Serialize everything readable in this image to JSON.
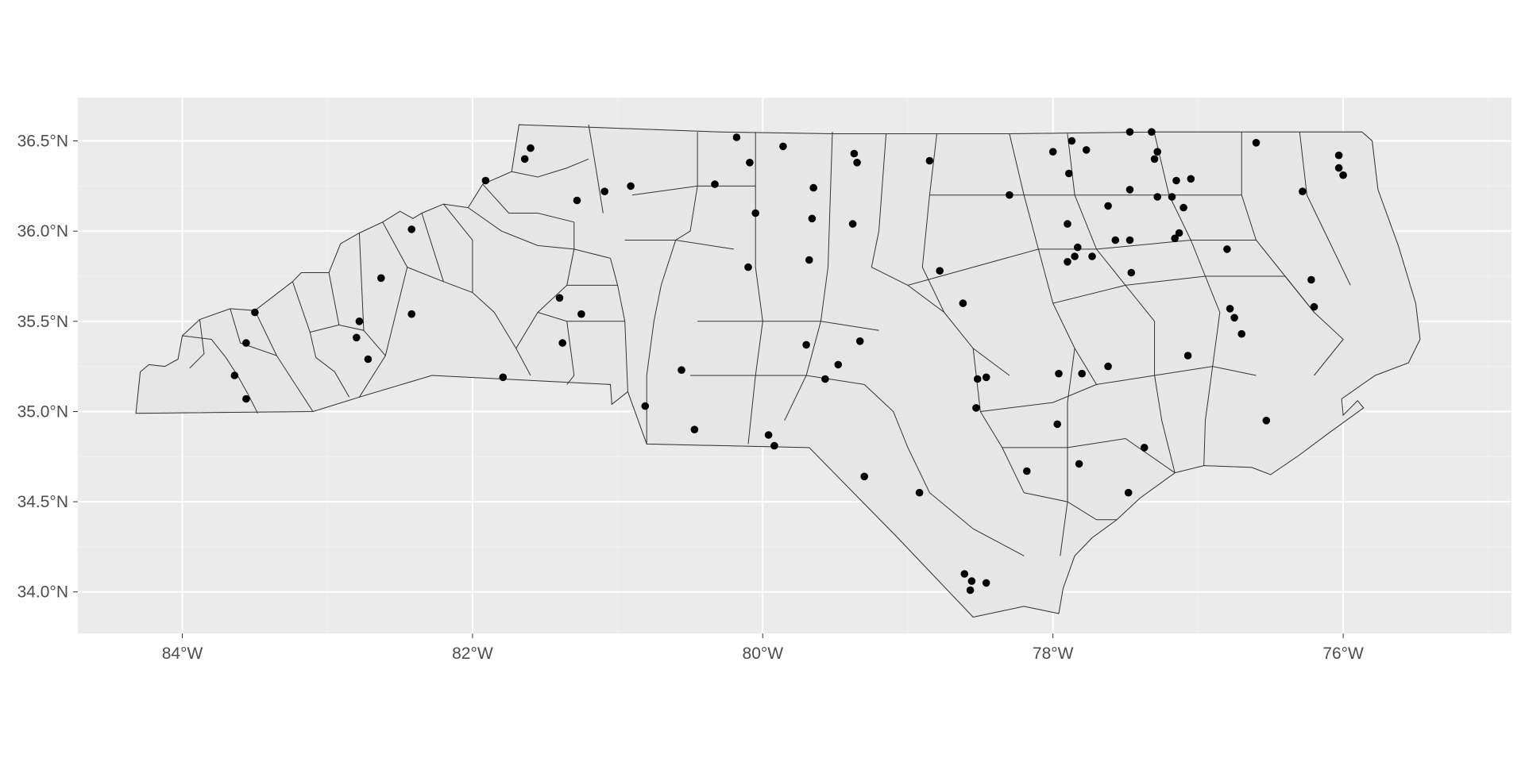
{
  "map": {
    "kind": "sf-plot",
    "region": "North Carolina counties",
    "panel_background": "#ebebeb",
    "fill_color": "#e6e6e6",
    "border_color": "#333333",
    "point_color": "#000000",
    "grid": true
  },
  "axes": {
    "x": {
      "range": [
        -84.72,
        -74.84
      ],
      "ticks": [
        {
          "value": -84,
          "label": "84°W"
        },
        {
          "value": -82,
          "label": "82°W"
        },
        {
          "value": -80,
          "label": "80°W"
        },
        {
          "value": -78,
          "label": "78°W"
        },
        {
          "value": -76,
          "label": "76°W"
        }
      ]
    },
    "y": {
      "range": [
        33.77,
        36.74
      ],
      "ticks": [
        {
          "value": 34.0,
          "label": "34.0°N"
        },
        {
          "value": 34.5,
          "label": "34.5°N"
        },
        {
          "value": 35.0,
          "label": "35.0°N"
        },
        {
          "value": 35.5,
          "label": "35.5°N"
        },
        {
          "value": 36.0,
          "label": "36.0°N"
        },
        {
          "value": 36.5,
          "label": "36.5°N"
        }
      ]
    }
  },
  "state_outline": [
    [
      -84.32,
      34.99
    ],
    [
      -84.29,
      35.22
    ],
    [
      -84.23,
      35.26
    ],
    [
      -84.12,
      35.25
    ],
    [
      -84.03,
      35.29
    ],
    [
      -84.0,
      35.42
    ],
    [
      -83.88,
      35.51
    ],
    [
      -83.67,
      35.57
    ],
    [
      -83.5,
      35.56
    ],
    [
      -83.24,
      35.72
    ],
    [
      -83.18,
      35.77
    ],
    [
      -82.99,
      35.77
    ],
    [
      -82.91,
      35.93
    ],
    [
      -82.78,
      35.99
    ],
    [
      -82.62,
      36.05
    ],
    [
      -82.5,
      36.11
    ],
    [
      -82.41,
      36.07
    ],
    [
      -82.35,
      36.1
    ],
    [
      -82.2,
      36.15
    ],
    [
      -82.03,
      36.13
    ],
    [
      -81.93,
      36.26
    ],
    [
      -81.73,
      36.33
    ],
    [
      -81.68,
      36.59
    ],
    [
      -80.3,
      36.55
    ],
    [
      -79.51,
      36.54
    ],
    [
      -78.3,
      36.54
    ],
    [
      -77.27,
      36.55
    ],
    [
      -76.92,
      36.55
    ],
    [
      -75.87,
      36.55
    ],
    [
      -75.8,
      36.5
    ],
    [
      -75.76,
      36.23
    ],
    [
      -75.62,
      35.92
    ],
    [
      -75.5,
      35.6
    ],
    [
      -75.47,
      35.4
    ],
    [
      -75.55,
      35.27
    ],
    [
      -75.78,
      35.2
    ],
    [
      -76.01,
      35.07
    ],
    [
      -76.0,
      34.98
    ],
    [
      -75.9,
      35.06
    ],
    [
      -75.86,
      35.02
    ],
    [
      -76.1,
      34.88
    ],
    [
      -76.3,
      34.76
    ],
    [
      -76.5,
      34.65
    ],
    [
      -76.63,
      34.69
    ],
    [
      -76.96,
      34.7
    ],
    [
      -77.16,
      34.66
    ],
    [
      -77.4,
      34.52
    ],
    [
      -77.56,
      34.4
    ],
    [
      -77.73,
      34.3
    ],
    [
      -77.85,
      34.2
    ],
    [
      -77.93,
      34.02
    ],
    [
      -77.96,
      33.88
    ],
    [
      -78.2,
      33.92
    ],
    [
      -78.55,
      33.86
    ],
    [
      -79.07,
      34.3
    ],
    [
      -79.68,
      34.8
    ],
    [
      -80.8,
      34.82
    ],
    [
      -80.93,
      35.11
    ],
    [
      -81.04,
      35.04
    ],
    [
      -81.05,
      35.15
    ],
    [
      -82.28,
      35.2
    ],
    [
      -82.78,
      35.08
    ],
    [
      -83.1,
      35.0
    ],
    [
      -84.32,
      34.99
    ]
  ],
  "county_lines": [
    [
      [
        -84.0,
        35.42
      ],
      [
        -83.8,
        35.4
      ],
      [
        -83.7,
        35.3
      ],
      [
        -83.62,
        35.2
      ],
      [
        -83.55,
        35.1
      ],
      [
        -83.48,
        34.99
      ]
    ],
    [
      [
        -83.88,
        35.51
      ],
      [
        -83.85,
        35.32
      ],
      [
        -83.95,
        35.24
      ]
    ],
    [
      [
        -83.67,
        35.57
      ],
      [
        -83.6,
        35.38
      ],
      [
        -83.35,
        35.31
      ],
      [
        -83.1,
        35.0
      ]
    ],
    [
      [
        -83.5,
        35.56
      ],
      [
        -83.35,
        35.31
      ]
    ],
    [
      [
        -83.24,
        35.72
      ],
      [
        -83.12,
        35.44
      ],
      [
        -83.08,
        35.3
      ],
      [
        -82.95,
        35.22
      ],
      [
        -82.85,
        35.08
      ]
    ],
    [
      [
        -83.12,
        35.44
      ],
      [
        -82.92,
        35.48
      ],
      [
        -82.75,
        35.45
      ],
      [
        -82.6,
        35.31
      ],
      [
        -82.78,
        35.08
      ]
    ],
    [
      [
        -82.99,
        35.77
      ],
      [
        -82.92,
        35.48
      ]
    ],
    [
      [
        -82.78,
        35.99
      ],
      [
        -82.75,
        35.45
      ]
    ],
    [
      [
        -82.62,
        36.05
      ],
      [
        -82.45,
        35.8
      ],
      [
        -82.6,
        35.31
      ]
    ],
    [
      [
        -82.45,
        35.8
      ],
      [
        -82.2,
        35.72
      ],
      [
        -82.0,
        35.66
      ],
      [
        -81.85,
        35.55
      ],
      [
        -81.7,
        35.35
      ],
      [
        -81.6,
        35.2
      ]
    ],
    [
      [
        -82.35,
        36.1
      ],
      [
        -82.2,
        35.72
      ]
    ],
    [
      [
        -82.2,
        36.15
      ],
      [
        -82.0,
        35.95
      ],
      [
        -82.0,
        35.66
      ]
    ],
    [
      [
        -82.03,
        36.13
      ],
      [
        -81.8,
        36.0
      ],
      [
        -81.55,
        35.92
      ],
      [
        -81.3,
        35.9
      ],
      [
        -81.05,
        35.85
      ]
    ],
    [
      [
        -81.93,
        36.26
      ],
      [
        -81.75,
        36.1
      ],
      [
        -81.55,
        36.1
      ],
      [
        -81.3,
        36.05
      ]
    ],
    [
      [
        -81.73,
        36.33
      ],
      [
        -81.55,
        36.3
      ],
      [
        -81.35,
        36.35
      ],
      [
        -81.2,
        36.4
      ]
    ],
    [
      [
        -81.2,
        36.59
      ],
      [
        -81.15,
        36.35
      ],
      [
        -81.1,
        36.1
      ]
    ],
    [
      [
        -81.3,
        36.05
      ],
      [
        -81.3,
        35.9
      ],
      [
        -81.35,
        35.7
      ],
      [
        -81.55,
        35.55
      ],
      [
        -81.7,
        35.35
      ]
    ],
    [
      [
        -81.05,
        35.85
      ],
      [
        -81.0,
        35.7
      ],
      [
        -80.95,
        35.5
      ],
      [
        -80.93,
        35.11
      ]
    ],
    [
      [
        -81.35,
        35.7
      ],
      [
        -81.0,
        35.7
      ]
    ],
    [
      [
        -81.55,
        35.55
      ],
      [
        -81.35,
        35.5
      ],
      [
        -81.3,
        35.2
      ],
      [
        -81.35,
        35.15
      ]
    ],
    [
      [
        -81.35,
        35.5
      ],
      [
        -80.95,
        35.5
      ]
    ],
    [
      [
        -80.9,
        36.2
      ],
      [
        -80.45,
        36.25
      ],
      [
        -80.05,
        36.25
      ]
    ],
    [
      [
        -80.95,
        35.95
      ],
      [
        -80.6,
        35.95
      ],
      [
        -80.2,
        35.9
      ]
    ],
    [
      [
        -80.45,
        36.55
      ],
      [
        -80.45,
        36.25
      ],
      [
        -80.5,
        36.0
      ],
      [
        -80.6,
        35.95
      ],
      [
        -80.7,
        35.7
      ],
      [
        -80.75,
        35.5
      ],
      [
        -80.8,
        35.2
      ],
      [
        -80.8,
        34.82
      ]
    ],
    [
      [
        -80.05,
        36.55
      ],
      [
        -80.05,
        35.8
      ],
      [
        -80.0,
        35.5
      ],
      [
        -80.05,
        35.2
      ],
      [
        -80.1,
        34.82
      ]
    ],
    [
      [
        -79.52,
        36.55
      ],
      [
        -79.55,
        35.8
      ],
      [
        -79.6,
        35.5
      ],
      [
        -79.7,
        35.2
      ],
      [
        -79.85,
        34.95
      ]
    ],
    [
      [
        -79.15,
        36.54
      ],
      [
        -79.2,
        36.0
      ],
      [
        -79.25,
        35.8
      ]
    ],
    [
      [
        -78.8,
        36.54
      ],
      [
        -78.85,
        36.2
      ],
      [
        -78.9,
        35.8
      ],
      [
        -78.75,
        35.55
      ]
    ],
    [
      [
        -80.45,
        35.5
      ],
      [
        -80.0,
        35.5
      ],
      [
        -79.6,
        35.5
      ],
      [
        -79.2,
        35.45
      ]
    ],
    [
      [
        -80.5,
        35.2
      ],
      [
        -80.05,
        35.2
      ],
      [
        -79.7,
        35.2
      ],
      [
        -79.3,
        35.15
      ]
    ],
    [
      [
        -79.25,
        35.8
      ],
      [
        -79.0,
        35.7
      ],
      [
        -78.75,
        35.55
      ],
      [
        -78.55,
        35.35
      ],
      [
        -78.3,
        35.2
      ]
    ],
    [
      [
        -79.3,
        35.15
      ],
      [
        -79.1,
        35.0
      ],
      [
        -79.0,
        34.8
      ],
      [
        -78.85,
        34.55
      ],
      [
        -78.55,
        34.35
      ],
      [
        -78.2,
        34.2
      ]
    ],
    [
      [
        -78.55,
        35.35
      ],
      [
        -78.5,
        35.0
      ],
      [
        -78.35,
        34.8
      ],
      [
        -78.2,
        34.55
      ]
    ],
    [
      [
        -78.3,
        36.54
      ],
      [
        -78.2,
        36.2
      ],
      [
        -78.1,
        35.9
      ],
      [
        -78.0,
        35.6
      ],
      [
        -77.85,
        35.35
      ],
      [
        -77.7,
        35.15
      ]
    ],
    [
      [
        -77.9,
        36.54
      ],
      [
        -77.85,
        36.2
      ],
      [
        -77.7,
        35.9
      ],
      [
        -77.5,
        35.7
      ],
      [
        -77.3,
        35.5
      ]
    ],
    [
      [
        -77.3,
        36.54
      ],
      [
        -77.2,
        36.2
      ],
      [
        -77.05,
        35.95
      ],
      [
        -76.95,
        35.75
      ],
      [
        -76.85,
        35.55
      ]
    ],
    [
      [
        -78.85,
        36.2
      ],
      [
        -78.2,
        36.2
      ],
      [
        -77.85,
        36.2
      ],
      [
        -77.2,
        36.2
      ],
      [
        -76.7,
        36.2
      ]
    ],
    [
      [
        -79.0,
        35.7
      ],
      [
        -78.55,
        35.8
      ],
      [
        -78.1,
        35.9
      ],
      [
        -77.7,
        35.9
      ],
      [
        -77.05,
        35.95
      ],
      [
        -76.6,
        35.95
      ]
    ],
    [
      [
        -78.0,
        35.6
      ],
      [
        -77.5,
        35.7
      ],
      [
        -76.95,
        35.75
      ],
      [
        -76.4,
        35.75
      ]
    ],
    [
      [
        -78.5,
        35.0
      ],
      [
        -78.0,
        35.05
      ],
      [
        -77.7,
        35.15
      ],
      [
        -77.3,
        35.2
      ],
      [
        -76.9,
        35.25
      ],
      [
        -76.6,
        35.2
      ]
    ],
    [
      [
        -78.35,
        34.8
      ],
      [
        -77.9,
        34.8
      ],
      [
        -77.5,
        34.85
      ],
      [
        -77.16,
        34.66
      ]
    ],
    [
      [
        -78.2,
        34.55
      ],
      [
        -77.9,
        34.5
      ],
      [
        -77.7,
        34.4
      ],
      [
        -77.56,
        34.4
      ]
    ],
    [
      [
        -77.85,
        35.35
      ],
      [
        -77.9,
        35.05
      ],
      [
        -77.9,
        34.8
      ],
      [
        -77.9,
        34.5
      ],
      [
        -77.95,
        34.2
      ]
    ],
    [
      [
        -77.3,
        35.5
      ],
      [
        -77.3,
        35.2
      ],
      [
        -77.25,
        34.95
      ],
      [
        -77.16,
        34.66
      ]
    ],
    [
      [
        -76.85,
        35.55
      ],
      [
        -76.9,
        35.25
      ],
      [
        -76.95,
        34.95
      ],
      [
        -76.96,
        34.7
      ]
    ],
    [
      [
        -76.7,
        36.55
      ],
      [
        -76.7,
        36.2
      ],
      [
        -76.6,
        35.95
      ],
      [
        -76.4,
        35.75
      ],
      [
        -76.2,
        35.55
      ]
    ],
    [
      [
        -76.3,
        36.55
      ],
      [
        -76.25,
        36.2
      ],
      [
        -76.1,
        35.95
      ],
      [
        -75.95,
        35.7
      ]
    ],
    [
      [
        -76.4,
        35.75
      ],
      [
        -76.2,
        35.55
      ],
      [
        -76.0,
        35.4
      ],
      [
        -76.2,
        35.2
      ]
    ]
  ],
  "points": [
    [
      -81.6,
      36.46
    ],
    [
      -81.64,
      36.4
    ],
    [
      -81.91,
      36.28
    ],
    [
      -80.18,
      36.52
    ],
    [
      -79.86,
      36.47
    ],
    [
      -79.37,
      36.43
    ],
    [
      -79.35,
      36.38
    ],
    [
      -78.85,
      36.39
    ],
    [
      -77.47,
      36.55
    ],
    [
      -77.32,
      36.55
    ],
    [
      -77.3,
      36.4
    ],
    [
      -77.28,
      36.44
    ],
    [
      -77.05,
      36.29
    ],
    [
      -77.15,
      36.28
    ],
    [
      -76.6,
      36.49
    ],
    [
      -76.03,
      36.42
    ],
    [
      -76.03,
      36.35
    ],
    [
      -76.0,
      36.31
    ],
    [
      -81.28,
      36.17
    ],
    [
      -81.09,
      36.22
    ],
    [
      -80.91,
      36.25
    ],
    [
      -80.33,
      36.26
    ],
    [
      -80.09,
      36.38
    ],
    [
      -79.65,
      36.24
    ],
    [
      -78.3,
      36.2
    ],
    [
      -78.0,
      36.44
    ],
    [
      -77.87,
      36.5
    ],
    [
      -77.89,
      36.32
    ],
    [
      -77.77,
      36.45
    ],
    [
      -77.47,
      36.23
    ],
    [
      -77.28,
      36.19
    ],
    [
      -77.18,
      36.19
    ],
    [
      -77.1,
      36.13
    ],
    [
      -76.28,
      36.22
    ],
    [
      -82.42,
      36.01
    ],
    [
      -80.05,
      36.1
    ],
    [
      -79.66,
      36.07
    ],
    [
      -79.38,
      36.04
    ],
    [
      -77.9,
      36.04
    ],
    [
      -77.62,
      36.14
    ],
    [
      -77.57,
      35.95
    ],
    [
      -77.47,
      35.95
    ],
    [
      -77.13,
      35.99
    ],
    [
      -77.16,
      35.96
    ],
    [
      -76.8,
      35.9
    ],
    [
      -80.1,
      35.8
    ],
    [
      -79.68,
      35.84
    ],
    [
      -78.78,
      35.78
    ],
    [
      -77.83,
      35.91
    ],
    [
      -77.85,
      35.86
    ],
    [
      -77.73,
      35.86
    ],
    [
      -77.9,
      35.83
    ],
    [
      -77.46,
      35.77
    ],
    [
      -76.22,
      35.73
    ],
    [
      -82.63,
      35.74
    ],
    [
      -81.4,
      35.63
    ],
    [
      -81.25,
      35.54
    ],
    [
      -78.62,
      35.6
    ],
    [
      -76.78,
      35.57
    ],
    [
      -76.75,
      35.52
    ],
    [
      -76.7,
      35.43
    ],
    [
      -76.2,
      35.58
    ],
    [
      -83.5,
      35.55
    ],
    [
      -82.78,
      35.5
    ],
    [
      -82.42,
      35.54
    ],
    [
      -83.56,
      35.38
    ],
    [
      -82.8,
      35.41
    ],
    [
      -82.72,
      35.29
    ],
    [
      -81.38,
      35.38
    ],
    [
      -79.7,
      35.37
    ],
    [
      -79.33,
      35.39
    ],
    [
      -79.48,
      35.26
    ],
    [
      -79.57,
      35.18
    ],
    [
      -77.07,
      35.31
    ],
    [
      -83.64,
      35.2
    ],
    [
      -83.56,
      35.07
    ],
    [
      -81.79,
      35.19
    ],
    [
      -80.56,
      35.23
    ],
    [
      -80.81,
      35.03
    ],
    [
      -78.52,
      35.18
    ],
    [
      -78.46,
      35.19
    ],
    [
      -78.53,
      35.02
    ],
    [
      -77.96,
      35.21
    ],
    [
      -77.8,
      35.21
    ],
    [
      -77.62,
      35.25
    ],
    [
      -80.47,
      34.9
    ],
    [
      -79.96,
      34.87
    ],
    [
      -79.92,
      34.81
    ],
    [
      -77.97,
      34.93
    ],
    [
      -77.82,
      34.71
    ],
    [
      -77.37,
      34.8
    ],
    [
      -76.53,
      34.95
    ],
    [
      -79.3,
      34.64
    ],
    [
      -78.92,
      34.55
    ],
    [
      -78.18,
      34.67
    ],
    [
      -77.48,
      34.55
    ],
    [
      -78.61,
      34.1
    ],
    [
      -78.56,
      34.06
    ],
    [
      -78.46,
      34.05
    ],
    [
      -78.57,
      34.01
    ]
  ]
}
